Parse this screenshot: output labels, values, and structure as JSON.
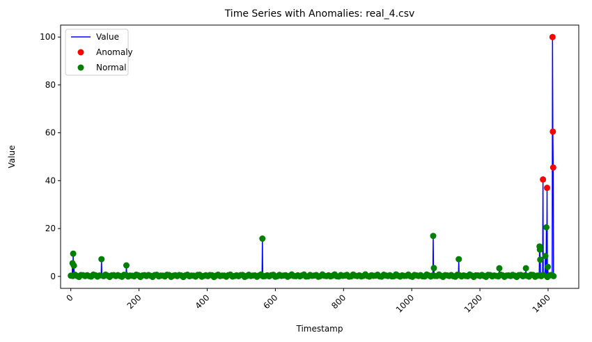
{
  "chart_data": {
    "type": "line",
    "title": "Time Series with Anomalies: real_4.csv",
    "xlabel": "Timestamp",
    "ylabel": "Value",
    "xlim": [
      -30,
      1490
    ],
    "ylim": [
      -5,
      105
    ],
    "xticks": [
      0,
      200,
      400,
      600,
      800,
      1000,
      1200,
      1400
    ],
    "yticks": [
      0,
      20,
      40,
      60,
      80,
      100
    ],
    "xtick_rotation": 45,
    "grid": false,
    "legend_position": "upper-left",
    "series": [
      {
        "name": "Value",
        "kind": "line",
        "color": "#0000ff",
        "baseline": 0.3,
        "x_range": [
          0,
          1420
        ],
        "spikes": [
          {
            "x": 5,
            "y": 5.5
          },
          {
            "x": 7,
            "y": 9.5
          },
          {
            "x": 9,
            "y": 4.5
          },
          {
            "x": 90,
            "y": 7.2
          },
          {
            "x": 163,
            "y": 4.6
          },
          {
            "x": 562,
            "y": 15.8
          },
          {
            "x": 1063,
            "y": 16.9
          },
          {
            "x": 1065,
            "y": 3.5
          },
          {
            "x": 1138,
            "y": 7.2
          },
          {
            "x": 1257,
            "y": 3.4
          },
          {
            "x": 1335,
            "y": 3.4
          },
          {
            "x": 1375,
            "y": 12.5
          },
          {
            "x": 1376,
            "y": 11.2
          },
          {
            "x": 1377,
            "y": 7.0
          },
          {
            "x": 1385,
            "y": 40.5
          },
          {
            "x": 1392,
            "y": 8.5
          },
          {
            "x": 1395,
            "y": 20.5
          },
          {
            "x": 1397,
            "y": 37.0
          },
          {
            "x": 1399,
            "y": 4.0
          },
          {
            "x": 1413,
            "y": 100.0
          },
          {
            "x": 1414,
            "y": 60.5
          },
          {
            "x": 1415,
            "y": 45.5
          }
        ]
      },
      {
        "name": "Anomaly",
        "kind": "scatter",
        "color": "#ff0000",
        "points": [
          {
            "x": 1385,
            "y": 40.5
          },
          {
            "x": 1397,
            "y": 37.0
          },
          {
            "x": 1413,
            "y": 100.0
          },
          {
            "x": 1414,
            "y": 60.5
          },
          {
            "x": 1415,
            "y": 45.5
          }
        ]
      },
      {
        "name": "Normal",
        "kind": "scatter",
        "color": "#008000",
        "baseline_points_step": 6,
        "points": [
          {
            "x": 5,
            "y": 5.5
          },
          {
            "x": 7,
            "y": 9.5
          },
          {
            "x": 9,
            "y": 4.5
          },
          {
            "x": 90,
            "y": 7.2
          },
          {
            "x": 163,
            "y": 4.6
          },
          {
            "x": 562,
            "y": 15.8
          },
          {
            "x": 1063,
            "y": 16.9
          },
          {
            "x": 1065,
            "y": 3.5
          },
          {
            "x": 1138,
            "y": 7.2
          },
          {
            "x": 1257,
            "y": 3.4
          },
          {
            "x": 1335,
            "y": 3.4
          },
          {
            "x": 1375,
            "y": 12.5
          },
          {
            "x": 1376,
            "y": 11.2
          },
          {
            "x": 1377,
            "y": 7.0
          },
          {
            "x": 1392,
            "y": 8.5
          },
          {
            "x": 1395,
            "y": 20.5
          },
          {
            "x": 1399,
            "y": 4.0
          }
        ]
      }
    ]
  }
}
